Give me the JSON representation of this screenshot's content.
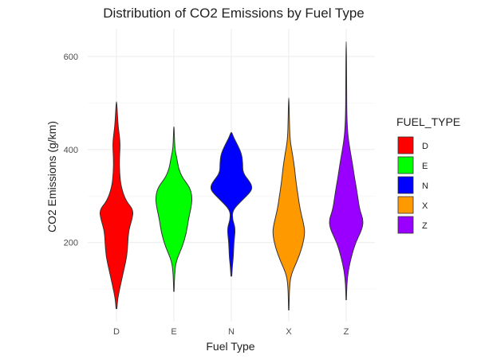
{
  "chart_data": {
    "type": "violin",
    "title": "Distribution of CO2 Emissions by Fuel Type",
    "xlabel": "Fuel Type",
    "ylabel": "CO2 Emissions (g/km)",
    "categories": [
      "D",
      "E",
      "N",
      "X",
      "Z"
    ],
    "ylim": [
      30,
      660
    ],
    "yticks": [
      200,
      400,
      600
    ],
    "grid": true,
    "legend": {
      "title": "FUEL_TYPE",
      "placement": "right",
      "entries": [
        "D",
        "E",
        "N",
        "X",
        "Z"
      ]
    },
    "colors": {
      "D": "#ff0000",
      "E": "#00ff00",
      "N": "#0000ff",
      "X": "#ff9900",
      "Z": "#9900ff"
    },
    "series": [
      {
        "category": "D",
        "min": 58,
        "max": 503,
        "profile": [
          [
            58,
            0.02
          ],
          [
            80,
            0.06
          ],
          [
            110,
            0.2
          ],
          [
            140,
            0.35
          ],
          [
            170,
            0.5
          ],
          [
            200,
            0.55
          ],
          [
            225,
            0.58
          ],
          [
            250,
            0.75
          ],
          [
            270,
            0.82
          ],
          [
            290,
            0.45
          ],
          [
            320,
            0.22
          ],
          [
            350,
            0.15
          ],
          [
            380,
            0.14
          ],
          [
            410,
            0.18
          ],
          [
            430,
            0.14
          ],
          [
            450,
            0.08
          ],
          [
            480,
            0.04
          ],
          [
            503,
            0.01
          ]
        ]
      },
      {
        "category": "E",
        "min": 95,
        "max": 449,
        "profile": [
          [
            95,
            0.01
          ],
          [
            130,
            0.03
          ],
          [
            160,
            0.1
          ],
          [
            190,
            0.4
          ],
          [
            220,
            0.6
          ],
          [
            250,
            0.7
          ],
          [
            280,
            0.85
          ],
          [
            300,
            0.88
          ],
          [
            320,
            0.75
          ],
          [
            340,
            0.4
          ],
          [
            360,
            0.22
          ],
          [
            380,
            0.15
          ],
          [
            400,
            0.05
          ],
          [
            430,
            0.02
          ],
          [
            449,
            0.01
          ]
        ]
      },
      {
        "category": "N",
        "min": 128,
        "max": 437,
        "profile": [
          [
            128,
            0.02
          ],
          [
            150,
            0.05
          ],
          [
            170,
            0.1
          ],
          [
            200,
            0.12
          ],
          [
            230,
            0.2
          ],
          [
            250,
            0.05
          ],
          [
            270,
            0.06
          ],
          [
            290,
            0.5
          ],
          [
            310,
            0.95
          ],
          [
            320,
            1.0
          ],
          [
            330,
            0.9
          ],
          [
            350,
            0.55
          ],
          [
            370,
            0.55
          ],
          [
            390,
            0.5
          ],
          [
            410,
            0.3
          ],
          [
            425,
            0.12
          ],
          [
            437,
            0.02
          ]
        ]
      },
      {
        "category": "X",
        "min": 55,
        "max": 511,
        "profile": [
          [
            55,
            0.01
          ],
          [
            100,
            0.03
          ],
          [
            130,
            0.1
          ],
          [
            160,
            0.4
          ],
          [
            190,
            0.65
          ],
          [
            220,
            0.78
          ],
          [
            240,
            0.72
          ],
          [
            270,
            0.55
          ],
          [
            300,
            0.45
          ],
          [
            330,
            0.35
          ],
          [
            360,
            0.28
          ],
          [
            390,
            0.18
          ],
          [
            420,
            0.06
          ],
          [
            460,
            0.03
          ],
          [
            511,
            0.01
          ]
        ]
      },
      {
        "category": "Z",
        "min": 77,
        "max": 632,
        "profile": [
          [
            77,
            0.01
          ],
          [
            110,
            0.03
          ],
          [
            140,
            0.1
          ],
          [
            170,
            0.25
          ],
          [
            200,
            0.45
          ],
          [
            230,
            0.78
          ],
          [
            250,
            0.82
          ],
          [
            270,
            0.65
          ],
          [
            300,
            0.55
          ],
          [
            320,
            0.48
          ],
          [
            340,
            0.4
          ],
          [
            370,
            0.3
          ],
          [
            400,
            0.18
          ],
          [
            430,
            0.08
          ],
          [
            470,
            0.03
          ],
          [
            530,
            0.02
          ],
          [
            632,
            0.01
          ]
        ]
      }
    ]
  }
}
